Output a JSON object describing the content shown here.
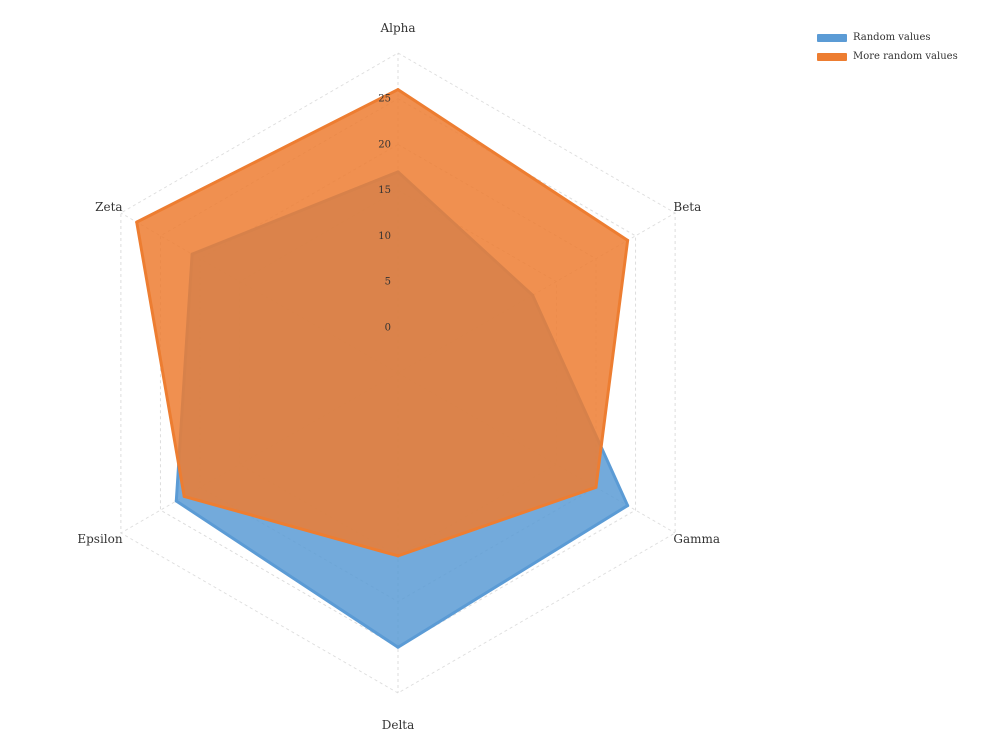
{
  "chart_data": {
    "type": "radar",
    "categories": [
      "Alpha",
      "Beta",
      "Gamma",
      "Delta",
      "Epsilon",
      "Zeta"
    ],
    "series": [
      {
        "name": "Random values",
        "values": [
          17,
          12,
          24,
          25,
          23,
          21
        ],
        "color": "#5b9bd5"
      },
      {
        "name": "More random values",
        "values": [
          26,
          24,
          20,
          15,
          22,
          28
        ],
        "color": "#ed7d31"
      }
    ],
    "ticks": [
      0,
      5,
      10,
      15,
      20,
      25
    ],
    "rlim": [
      -5,
      30
    ],
    "grid": true,
    "legend_position": "top-right"
  }
}
